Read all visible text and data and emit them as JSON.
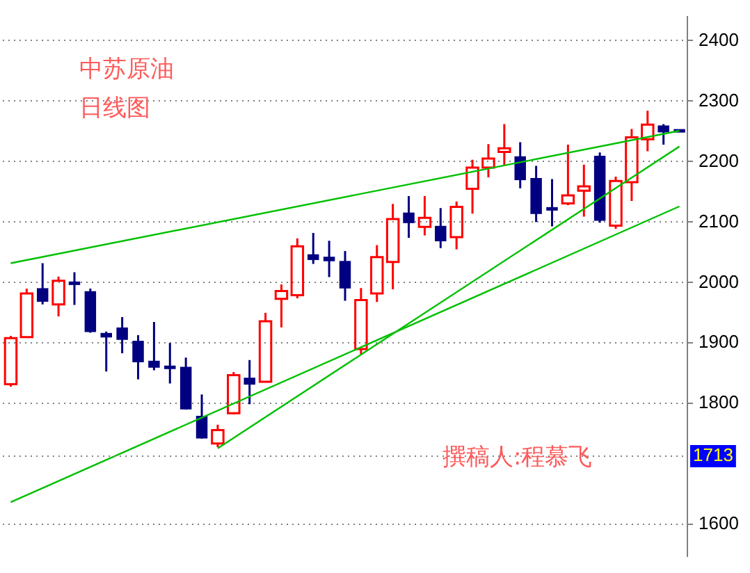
{
  "chart_data": {
    "type": "candlestick",
    "categories": [
      null,
      null,
      null,
      null,
      null,
      null,
      null,
      null,
      null,
      null,
      null,
      null,
      null,
      null,
      null,
      null,
      null,
      null,
      null,
      null,
      null,
      null,
      null,
      null,
      null,
      null,
      null,
      null,
      null,
      null,
      null,
      null,
      null,
      null,
      null,
      null,
      null,
      null,
      null,
      null,
      null,
      null,
      null
    ],
    "series": [
      {
        "ohlc": [
          [
            1832,
            1912,
            1828,
            1908
          ],
          [
            1910,
            1990,
            1910,
            1982
          ],
          [
            1989,
            2032,
            1964,
            1970
          ],
          [
            1964,
            2010,
            1944,
            2003
          ],
          [
            2000,
            2017,
            1963,
            1998
          ],
          [
            1984,
            1990,
            1917,
            1920
          ],
          [
            1915,
            1919,
            1853,
            1911
          ],
          [
            1924,
            1943,
            1883,
            1907
          ],
          [
            1902,
            1913,
            1840,
            1870
          ],
          [
            1869,
            1935,
            1855,
            1861
          ],
          [
            1861,
            1900,
            1833,
            1859
          ],
          [
            1859,
            1876,
            1790,
            1792
          ],
          [
            1778,
            1815,
            1742,
            1744
          ],
          [
            1734,
            1765,
            1728,
            1756
          ],
          [
            1784,
            1852,
            1782,
            1847
          ],
          [
            1841,
            1872,
            1799,
            1833
          ],
          [
            1836,
            1950,
            1836,
            1936
          ],
          [
            1973,
            1997,
            1926,
            1986
          ],
          [
            1979,
            2073,
            1974,
            2060
          ],
          [
            2045,
            2082,
            2031,
            2039
          ],
          [
            2041,
            2069,
            2009,
            2037
          ],
          [
            2034,
            2052,
            1970,
            1992
          ],
          [
            1890,
            1991,
            1882,
            1971
          ],
          [
            1982,
            2062,
            1968,
            2042
          ],
          [
            2034,
            2130,
            1989,
            2105
          ],
          [
            2114,
            2143,
            2074,
            2100
          ],
          [
            2092,
            2143,
            2078,
            2107
          ],
          [
            2092,
            2123,
            2057,
            2070
          ],
          [
            2075,
            2134,
            2055,
            2125
          ],
          [
            2155,
            2203,
            2114,
            2190
          ],
          [
            2190,
            2229,
            2174,
            2205
          ],
          [
            2216,
            2262,
            2194,
            2222
          ],
          [
            2207,
            2232,
            2156,
            2171
          ],
          [
            2171,
            2193,
            2100,
            2115
          ],
          [
            2123,
            2171,
            2093,
            2121
          ],
          [
            2131,
            2228,
            2128,
            2144
          ],
          [
            2152,
            2195,
            2109,
            2159
          ],
          [
            2208,
            2215,
            2099,
            2104
          ],
          [
            2094,
            2175,
            2089,
            2168
          ],
          [
            2166,
            2254,
            2135,
            2240
          ],
          [
            2237,
            2284,
            2217,
            2261
          ],
          [
            2258,
            2262,
            2228,
            2250
          ],
          [
            2252,
            2253,
            2249,
            2251
          ]
        ],
        "colors": [
          "#ff0000",
          "#ff0000",
          "#000080",
          "#ff0000",
          "#000080",
          "#000080",
          "#000080",
          "#000080",
          "#000080",
          "#000080",
          "#000080",
          "#000080",
          "#000080",
          "#ff0000",
          "#ff0000",
          "#000080",
          "#ff0000",
          "#ff0000",
          "#ff0000",
          "#000080",
          "#000080",
          "#000080",
          "#ff0000",
          "#ff0000",
          "#ff0000",
          "#000080",
          "#ff0000",
          "#000080",
          "#ff0000",
          "#ff0000",
          "#ff0000",
          "#ff0000",
          "#000080",
          "#000080",
          "#000080",
          "#ff0000",
          "#ff0000",
          "#000080",
          "#ff0000",
          "#ff0000",
          "#ff0000",
          "#000080",
          "#000080"
        ]
      },
      {
        "type": "line",
        "color": "#00c000",
        "values": [
          2032,
          null,
          null,
          null,
          null,
          null,
          null,
          null,
          null,
          null,
          null,
          null,
          null,
          null,
          null,
          null,
          null,
          null,
          null,
          null,
          null,
          null,
          null,
          null,
          null,
          null,
          null,
          null,
          null,
          null,
          null,
          null,
          null,
          null,
          null,
          null,
          null,
          null,
          null,
          null,
          null,
          null,
          2251
        ]
      },
      {
        "type": "line",
        "color": "#00c000",
        "values": [
          null,
          null,
          null,
          null,
          null,
          null,
          null,
          null,
          null,
          null,
          null,
          null,
          null,
          1726,
          null,
          null,
          null,
          null,
          null,
          null,
          null,
          null,
          null,
          null,
          null,
          null,
          null,
          null,
          null,
          null,
          null,
          null,
          null,
          null,
          null,
          null,
          null,
          null,
          null,
          null,
          null,
          null,
          2225
        ]
      },
      {
        "type": "line",
        "color": "#00c000",
        "values": [
          1637,
          null,
          null,
          null,
          null,
          null,
          null,
          null,
          null,
          null,
          null,
          null,
          null,
          null,
          null,
          null,
          null,
          null,
          null,
          null,
          null,
          null,
          null,
          null,
          null,
          null,
          null,
          null,
          null,
          null,
          null,
          null,
          null,
          null,
          null,
          null,
          null,
          null,
          null,
          null,
          null,
          null,
          2126
        ]
      }
    ],
    "ylim": [
      1547,
      2440
    ],
    "yticks": [
      1600,
      1800,
      1900,
      2000,
      2100,
      2200,
      2300,
      2400
    ],
    "ref_lines": [
      {
        "axis": "y",
        "value": 1713,
        "label": "1713",
        "line_style": "dotted"
      }
    ],
    "grid": "y",
    "tick_labels": "y",
    "legend": false,
    "annotations": [
      "中苏原油",
      "日线图",
      "撰稿人:程慕飞"
    ]
  }
}
